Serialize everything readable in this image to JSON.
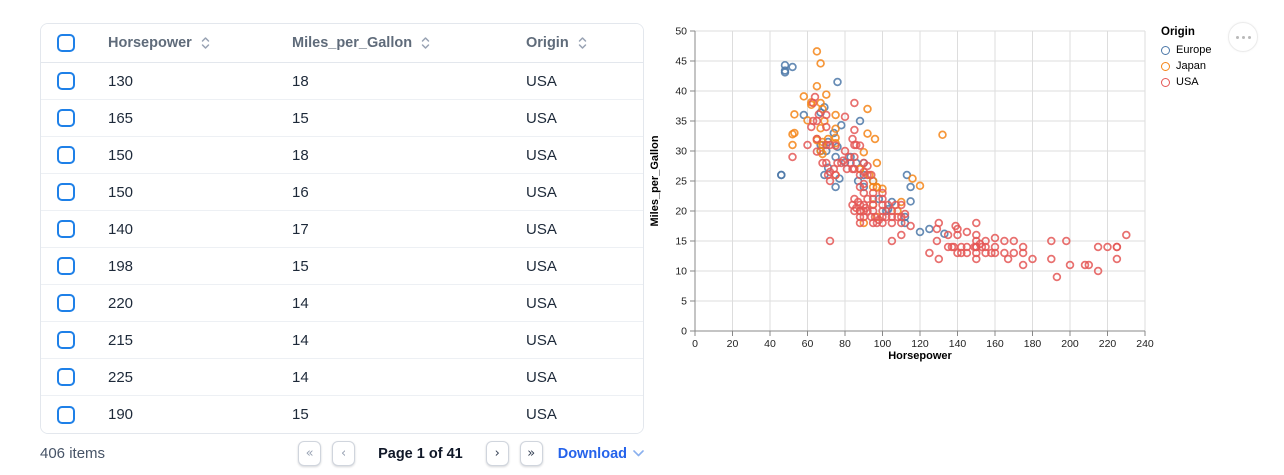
{
  "table": {
    "columns": [
      {
        "label": "Horsepower"
      },
      {
        "label": "Miles_per_Gallon"
      },
      {
        "label": "Origin"
      }
    ],
    "rows": [
      [
        130,
        18,
        "USA"
      ],
      [
        165,
        15,
        "USA"
      ],
      [
        150,
        18,
        "USA"
      ],
      [
        150,
        16,
        "USA"
      ],
      [
        140,
        17,
        "USA"
      ],
      [
        198,
        15,
        "USA"
      ],
      [
        220,
        14,
        "USA"
      ],
      [
        215,
        14,
        "USA"
      ],
      [
        225,
        14,
        "USA"
      ],
      [
        190,
        15,
        "USA"
      ]
    ]
  },
  "footer": {
    "items_text": "406 items",
    "page_text": "Page 1 of 41",
    "download_label": "Download",
    "buttons": {
      "first": "«",
      "prev": "‹",
      "next": "›",
      "last": "»"
    }
  },
  "chart_data": {
    "type": "scatter",
    "title": "",
    "xlabel": "Horsepower",
    "ylabel": "Miles_per_Gallon",
    "xlim": [
      0,
      240
    ],
    "ylim": [
      0,
      50
    ],
    "x_tick_step": 20,
    "y_tick_step": 5,
    "grid": true,
    "legend": {
      "title": "Origin",
      "position": "top-right",
      "entries": [
        {
          "label": "Europe",
          "color": "#4c78a8"
        },
        {
          "label": "Japan",
          "color": "#f58518"
        },
        {
          "label": "USA",
          "color": "#e45756"
        }
      ]
    },
    "series": [
      {
        "name": "Europe",
        "color": "#4c78a8",
        "points": [
          [
            46,
            26
          ],
          [
            46,
            26
          ],
          [
            48,
            43.1
          ],
          [
            48,
            44.3
          ],
          [
            48,
            43.4
          ],
          [
            52,
            44
          ],
          [
            58,
            36
          ],
          [
            67,
            36.4
          ],
          [
            67,
            31
          ],
          [
            67,
            30
          ],
          [
            69,
            37.3
          ],
          [
            69,
            26
          ],
          [
            70,
            30
          ],
          [
            71,
            31.5
          ],
          [
            71,
            27.2
          ],
          [
            74,
            33
          ],
          [
            75,
            24
          ],
          [
            75,
            29
          ],
          [
            76,
            41.5
          ],
          [
            76,
            30.7
          ],
          [
            77,
            25.4
          ],
          [
            78,
            34.3
          ],
          [
            80,
            28.1
          ],
          [
            83,
            29
          ],
          [
            86,
            28
          ],
          [
            87,
            25
          ],
          [
            88,
            35
          ],
          [
            90,
            24
          ],
          [
            90,
            26
          ],
          [
            90,
            28
          ],
          [
            95,
            25
          ],
          [
            98,
            22
          ],
          [
            102,
            20
          ],
          [
            103,
            20.3
          ],
          [
            105,
            21.5
          ],
          [
            112,
            19
          ],
          [
            112,
            18
          ],
          [
            113,
            26
          ],
          [
            115,
            24
          ],
          [
            115,
            21.6
          ],
          [
            120,
            16.5
          ],
          [
            125,
            17
          ],
          [
            133,
            16.2
          ]
        ]
      },
      {
        "name": "Japan",
        "color": "#f58518",
        "points": [
          [
            52,
            32.8
          ],
          [
            52,
            31
          ],
          [
            53,
            33
          ],
          [
            53,
            36.1
          ],
          [
            58,
            39.1
          ],
          [
            60,
            35.1
          ],
          [
            62,
            37.7
          ],
          [
            62,
            38.1
          ],
          [
            65,
            46.6
          ],
          [
            65,
            40.8
          ],
          [
            65,
            31.8
          ],
          [
            65,
            32
          ],
          [
            67,
            44.6
          ],
          [
            67,
            38
          ],
          [
            67,
            30
          ],
          [
            67,
            33.8
          ],
          [
            68,
            37
          ],
          [
            68,
            31
          ],
          [
            68,
            31.5
          ],
          [
            68,
            29.5
          ],
          [
            69,
            35
          ],
          [
            70,
            39.4
          ],
          [
            71,
            32
          ],
          [
            75,
            36
          ],
          [
            75,
            33.7
          ],
          [
            75,
            31.3
          ],
          [
            75,
            26
          ],
          [
            75,
            32.2
          ],
          [
            88,
            27
          ],
          [
            88,
            27
          ],
          [
            88,
            20
          ],
          [
            90,
            18
          ],
          [
            90,
            29.8
          ],
          [
            92,
            37
          ],
          [
            92,
            32.9
          ],
          [
            93,
            26
          ],
          [
            95,
            24
          ],
          [
            95,
            25
          ],
          [
            95,
            21.1
          ],
          [
            96,
            32
          ],
          [
            97,
            19
          ],
          [
            97,
            28
          ],
          [
            97,
            24
          ],
          [
            97,
            23.9
          ],
          [
            100,
            23.7
          ],
          [
            108,
            20
          ],
          [
            110,
            21.5
          ],
          [
            116,
            25.4
          ],
          [
            120,
            24.2
          ],
          [
            132,
            32.7
          ]
        ]
      },
      {
        "name": "USA",
        "color": "#e45756",
        "points": [
          [
            130,
            18
          ],
          [
            165,
            15
          ],
          [
            150,
            18
          ],
          [
            150,
            16
          ],
          [
            140,
            17
          ],
          [
            198,
            15
          ],
          [
            220,
            14
          ],
          [
            215,
            14
          ],
          [
            225,
            14
          ],
          [
            190,
            15
          ],
          [
            170,
            15
          ],
          [
            160,
            14
          ],
          [
            150,
            15
          ],
          [
            225,
            14
          ],
          [
            215,
            10
          ],
          [
            200,
            11
          ],
          [
            210,
            11
          ],
          [
            193,
            9
          ],
          [
            175,
            13
          ],
          [
            153,
            14
          ],
          [
            175,
            14
          ],
          [
            145,
            13
          ],
          [
            137,
            14
          ],
          [
            158,
            13
          ],
          [
            150,
            14
          ],
          [
            155,
            13
          ],
          [
            142,
            13
          ],
          [
            129,
            15
          ],
          [
            138,
            14
          ],
          [
            135,
            14
          ],
          [
            155,
            14
          ],
          [
            142,
            14
          ],
          [
            125,
            13
          ],
          [
            150,
            13
          ],
          [
            225,
            12
          ],
          [
            167,
            12
          ],
          [
            170,
            13
          ],
          [
            160,
            13
          ],
          [
            140,
            13
          ],
          [
            150,
            14
          ],
          [
            145,
            14
          ],
          [
            130,
            12
          ],
          [
            150,
            12
          ],
          [
            180,
            12
          ],
          [
            152,
            14.5
          ],
          [
            165,
            13
          ],
          [
            175,
            11
          ],
          [
            190,
            12
          ],
          [
            149,
            14
          ],
          [
            230,
            16
          ],
          [
            208,
            11
          ],
          [
            155,
            15
          ],
          [
            160,
            15.5
          ],
          [
            140,
            16
          ],
          [
            139,
            17.5
          ],
          [
            129,
            17
          ],
          [
            135,
            16
          ],
          [
            145,
            16.5
          ],
          [
            88,
            21
          ],
          [
            90,
            21
          ],
          [
            95,
            22
          ],
          [
            100,
            19
          ],
          [
            105,
            18
          ],
          [
            100,
            23
          ],
          [
            88,
            19
          ],
          [
            100,
            21
          ],
          [
            105,
            19
          ],
          [
            95,
            23
          ],
          [
            97,
            18
          ],
          [
            85,
            20
          ],
          [
            88,
            20
          ],
          [
            90,
            20
          ],
          [
            95,
            20
          ],
          [
            100,
            18
          ],
          [
            105,
            15
          ],
          [
            110,
            18
          ],
          [
            110,
            19
          ],
          [
            107,
            21
          ],
          [
            95,
            18
          ],
          [
            90,
            19
          ],
          [
            88,
            18
          ],
          [
            92,
            20
          ],
          [
            94,
            19
          ],
          [
            100,
            20
          ],
          [
            102,
            19
          ],
          [
            105,
            20
          ],
          [
            108,
            19
          ],
          [
            110,
            21
          ],
          [
            115,
            17.5
          ],
          [
            112,
            19.5
          ],
          [
            96,
            19
          ],
          [
            98,
            18.5
          ],
          [
            86,
            20.5
          ],
          [
            84,
            21
          ],
          [
            92,
            22
          ],
          [
            90,
            23
          ],
          [
            85,
            22
          ],
          [
            87,
            21.5
          ],
          [
            91,
            20.5
          ],
          [
            95,
            21
          ],
          [
            100,
            22
          ],
          [
            103,
            21
          ],
          [
            110,
            16
          ],
          [
            72,
            15
          ],
          [
            52,
            29
          ],
          [
            60,
            31
          ],
          [
            63,
            38
          ],
          [
            63,
            35
          ],
          [
            64,
            39
          ],
          [
            65,
            29.9
          ],
          [
            65,
            32
          ],
          [
            66,
            36.1
          ],
          [
            70,
            36
          ],
          [
            70,
            31
          ],
          [
            70,
            28
          ],
          [
            71,
            26
          ],
          [
            72,
            26.5
          ],
          [
            72,
            25
          ],
          [
            74,
            27
          ],
          [
            75,
            30.9
          ],
          [
            78,
            28
          ],
          [
            79,
            28.4
          ],
          [
            80,
            35.7
          ],
          [
            81,
            27
          ],
          [
            83,
            28
          ],
          [
            84,
            32
          ],
          [
            84,
            27
          ],
          [
            85,
            29
          ],
          [
            85,
            33.5
          ],
          [
            85,
            31
          ],
          [
            85,
            27
          ],
          [
            85,
            38
          ],
          [
            86,
            31
          ],
          [
            88,
            30.9
          ],
          [
            88,
            24
          ],
          [
            90,
            28
          ],
          [
            90,
            24.5
          ],
          [
            90,
            26.5
          ],
          [
            92,
            26
          ],
          [
            88,
            26
          ],
          [
            92,
            27.5
          ],
          [
            75,
            26
          ],
          [
            76,
            28
          ],
          [
            68,
            28
          ],
          [
            65,
            35
          ],
          [
            62,
            34
          ],
          [
            70,
            34
          ],
          [
            72,
            31
          ],
          [
            80,
            30
          ],
          [
            82,
            29
          ],
          [
            94,
            26
          ]
        ]
      }
    ]
  }
}
